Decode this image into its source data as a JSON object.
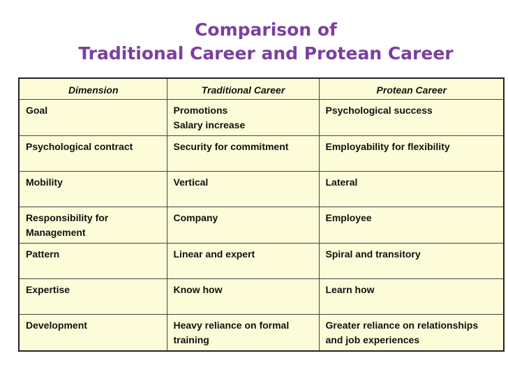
{
  "title": {
    "line1": "Comparison of",
    "line2": "Traditional Career and Protean Career"
  },
  "table": {
    "headers": [
      "Dimension",
      "Traditional Career",
      "Protean Career"
    ],
    "rows": [
      {
        "dimension": [
          "Goal"
        ],
        "traditional": [
          "Promotions",
          "Salary increase"
        ],
        "protean": [
          "Psychological success"
        ]
      },
      {
        "dimension": [
          "Psychological contract"
        ],
        "traditional": [
          "Security for commitment"
        ],
        "protean": [
          "Employability for flexibility"
        ]
      },
      {
        "dimension": [
          "Mobility"
        ],
        "traditional": [
          "Vertical"
        ],
        "protean": [
          "Lateral"
        ]
      },
      {
        "dimension": [
          "Responsibility for",
          "Management"
        ],
        "traditional": [
          "Company"
        ],
        "protean": [
          "Employee"
        ]
      },
      {
        "dimension": [
          "Pattern"
        ],
        "traditional": [
          "Linear and expert"
        ],
        "protean": [
          "Spiral and transitory"
        ]
      },
      {
        "dimension": [
          "Expertise"
        ],
        "traditional": [
          "Know how"
        ],
        "protean": [
          "Learn how"
        ]
      },
      {
        "dimension": [
          "Development"
        ],
        "traditional": [
          "Heavy reliance on formal",
          "training"
        ],
        "protean": [
          "Greater reliance on relationships",
          "and job experiences"
        ]
      }
    ]
  },
  "colors": {
    "title": "#7b3fa0",
    "table_background": "#fdfcd8",
    "border": "#222222"
  }
}
